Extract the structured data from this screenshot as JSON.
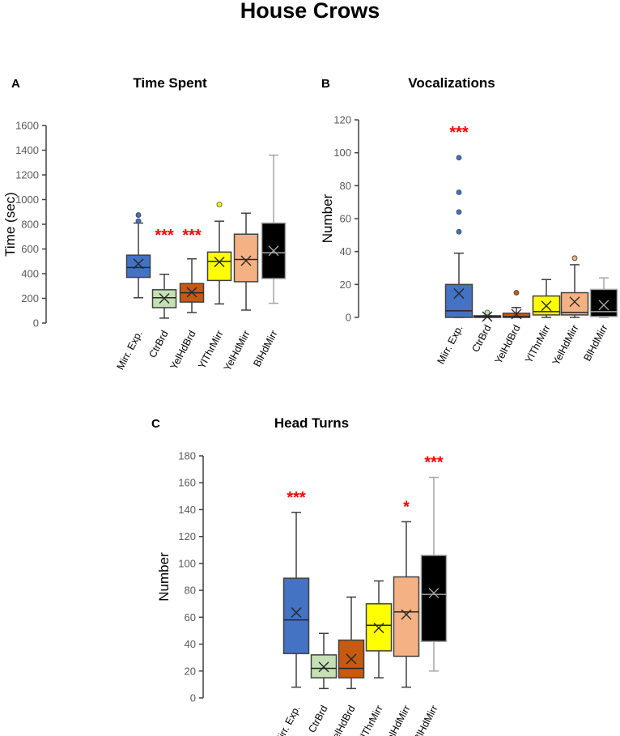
{
  "title": "House Crows",
  "chart_data": [
    {
      "type": "box",
      "panel": "A",
      "title": "Time Spent",
      "xlabel": "",
      "ylabel": "Time (sec)",
      "ylim": [
        0,
        1600
      ],
      "yticks": [
        0,
        200,
        400,
        600,
        800,
        1000,
        1200,
        1400,
        1600
      ],
      "categories": [
        "Mirr. Exp.",
        "CtrBrd",
        "YelHdBrd",
        "YlThrMirr",
        "YelHdMirr",
        "BlHdMirr"
      ],
      "colors": [
        "#4472C4",
        "#C5E0B4",
        "#C55A11",
        "#FFFF00",
        "#F4B183",
        "#000000"
      ],
      "series": [
        {
          "min": 205,
          "q1": 370,
          "median": 450,
          "q3": 550,
          "max": 810,
          "mean": 480,
          "outliers": [
            825,
            875
          ],
          "sig": ""
        },
        {
          "min": 40,
          "q1": 125,
          "median": 205,
          "q3": 270,
          "max": 395,
          "mean": 200,
          "outliers": [],
          "sig": "***"
        },
        {
          "min": 85,
          "q1": 170,
          "median": 245,
          "q3": 320,
          "max": 520,
          "mean": 250,
          "outliers": [],
          "sig": "***"
        },
        {
          "min": 155,
          "q1": 345,
          "median": 500,
          "q3": 575,
          "max": 825,
          "mean": 495,
          "outliers": [
            960
          ],
          "sig": ""
        },
        {
          "min": 105,
          "q1": 335,
          "median": 515,
          "q3": 720,
          "max": 890,
          "mean": 505,
          "outliers": [],
          "sig": ""
        },
        {
          "min": 160,
          "q1": 360,
          "median": 570,
          "q3": 810,
          "max": 1360,
          "mean": 585,
          "outliers": [],
          "sig": ""
        }
      ],
      "sig_level": 720
    },
    {
      "type": "box",
      "panel": "B",
      "title": "Vocalizations",
      "xlabel": "",
      "ylabel": "Number",
      "ylim": [
        0,
        120
      ],
      "yticks": [
        0,
        20,
        40,
        60,
        80,
        100,
        120
      ],
      "categories": [
        "Mirr. Exp.",
        "CtrBrd",
        "YelHdBrd",
        "YlThrMirr",
        "YelHdMirr",
        "BlHdMirr"
      ],
      "colors": [
        "#4472C4",
        "#C5E0B4",
        "#C55A11",
        "#FFFF00",
        "#F4B183",
        "#000000"
      ],
      "series": [
        {
          "min": 0,
          "q1": 0,
          "median": 4,
          "q3": 20,
          "max": 39,
          "mean": 14.5,
          "outliers": [
            52,
            64,
            76,
            97
          ],
          "sig": "***"
        },
        {
          "min": 0,
          "q1": 0,
          "median": 0.5,
          "q3": 1,
          "max": 1,
          "mean": 0.5,
          "outliers": [
            3
          ],
          "sig": ""
        },
        {
          "min": 0,
          "q1": 0,
          "median": 0.5,
          "q3": 2.5,
          "max": 6,
          "mean": 2,
          "outliers": [
            15
          ],
          "sig": ""
        },
        {
          "min": 0,
          "q1": 1.5,
          "median": 3.5,
          "q3": 13,
          "max": 23,
          "mean": 7,
          "outliers": [],
          "sig": ""
        },
        {
          "min": 0,
          "q1": 1.5,
          "median": 3,
          "q3": 15,
          "max": 32,
          "mean": 9.5,
          "outliers": [
            36
          ],
          "sig": ""
        },
        {
          "min": 0,
          "q1": 0.5,
          "median": 3.5,
          "q3": 17,
          "max": 24,
          "mean": 7.5,
          "outliers": [],
          "sig": ""
        }
      ],
      "sig_level": 113
    },
    {
      "type": "box",
      "panel": "C",
      "title": "Head Turns",
      "xlabel": "",
      "ylabel": "Number",
      "ylim": [
        0,
        180
      ],
      "yticks": [
        0,
        20,
        40,
        60,
        80,
        100,
        120,
        140,
        160,
        180
      ],
      "categories": [
        "Mirr. Exp.",
        "CtrBrd",
        "YelHdBrd",
        "YlThrMirr",
        "YelHdMirr",
        "BlHdMirr"
      ],
      "colors": [
        "#4472C4",
        "#C5E0B4",
        "#C55A11",
        "#FFFF00",
        "#F4B183",
        "#000000"
      ],
      "series": [
        {
          "min": 8,
          "q1": 33,
          "median": 58,
          "q3": 89,
          "max": 138,
          "mean": 63.5,
          "outliers": [],
          "sig": "***"
        },
        {
          "min": 7,
          "q1": 15,
          "median": 22,
          "q3": 32,
          "max": 48,
          "mean": 23,
          "outliers": [],
          "sig": ""
        },
        {
          "min": 7,
          "q1": 15,
          "median": 22,
          "q3": 43,
          "max": 75,
          "mean": 29,
          "outliers": [],
          "sig": ""
        },
        {
          "min": 15,
          "q1": 35,
          "median": 54,
          "q3": 70,
          "max": 87,
          "mean": 52,
          "outliers": [],
          "sig": ""
        },
        {
          "min": 8,
          "q1": 31,
          "median": 64,
          "q3": 90,
          "max": 131,
          "mean": 62,
          "outliers": [],
          "sig": "*"
        },
        {
          "min": 20,
          "q1": 42,
          "median": 77,
          "q3": 106,
          "max": 164,
          "mean": 78,
          "outliers": [],
          "sig": "***"
        }
      ]
    }
  ]
}
